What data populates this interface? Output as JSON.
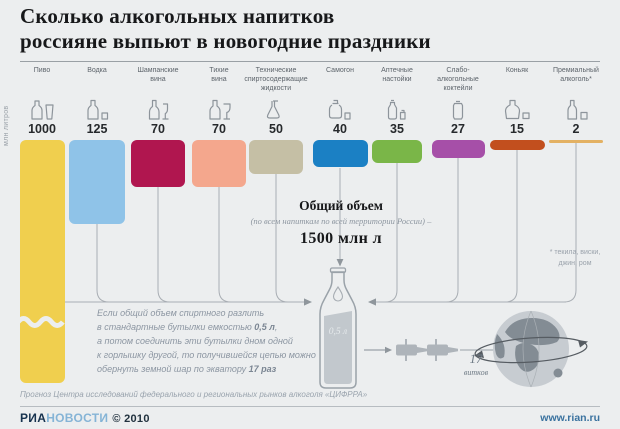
{
  "title": {
    "line1": "Сколько алкогольных напитков",
    "line2": "россияне выпьют в новогодние праздники"
  },
  "unit_label": "млн литров",
  "chart_data": {
    "type": "bar",
    "title": "Сколько алкогольных напитков россияне выпьют в новогодние праздники",
    "unit": "млн литров",
    "categories": [
      "Пиво",
      "Водка",
      "Шампанские вина",
      "Тихие вина",
      "Технические спиртосодержащие жидкости",
      "Самогон",
      "Аптечные настойки",
      "Слабо-алкогольные коктейли",
      "Коньяк",
      "Премиальный алкоголь*"
    ],
    "values": [
      1000,
      125,
      70,
      70,
      50,
      40,
      35,
      27,
      15,
      2
    ],
    "colors": [
      "#f0cf4e",
      "#8fc3e8",
      "#b0164f",
      "#f4a78d",
      "#c5bfa5",
      "#1b80c4",
      "#7ab648",
      "#a64fa8",
      "#c24f1e",
      "#e3b163"
    ],
    "orientation": "columns-down",
    "beer_bar_truncated": true,
    "total_label": "Общий объем",
    "total_note": "(по всем напиткам по всей территории России) –",
    "total_value": "1500 млн л",
    "footnote": "* текила, виски, джин, ром"
  },
  "columns": [
    {
      "label_lines": [
        "Пиво"
      ],
      "value": "1000",
      "color": "#f0cf4e",
      "icon": "beer-bottle-glass-icon"
    },
    {
      "label_lines": [
        "Водка"
      ],
      "value": "125",
      "color": "#8fc3e8",
      "icon": "vodka-bottle-shot-icon"
    },
    {
      "label_lines": [
        "Шампанские",
        "вина"
      ],
      "value": "70",
      "color": "#b0164f",
      "icon": "champagne-bottle-flute-icon"
    },
    {
      "label_lines": [
        "Тихие",
        "вина"
      ],
      "value": "70",
      "color": "#f4a78d",
      "icon": "wine-bottle-glass-icon"
    },
    {
      "label_lines": [
        "Технические",
        "спиртосодержащие",
        "жидкости"
      ],
      "value": "50",
      "color": "#c5bfa5",
      "icon": "flask-icon"
    },
    {
      "label_lines": [
        "Самогон"
      ],
      "value": "40",
      "color": "#1b80c4",
      "icon": "jug-shot-icon"
    },
    {
      "label_lines": [
        "Аптечные",
        "настойки"
      ],
      "value": "35",
      "color": "#7ab648",
      "icon": "tincture-vial-icon"
    },
    {
      "label_lines": [
        "Слабо-",
        "алкогольные",
        "коктейли"
      ],
      "value": "27",
      "color": "#a64fa8",
      "icon": "cocktail-can-icon"
    },
    {
      "label_lines": [
        "Коньяк"
      ],
      "value": "15",
      "color": "#c24f1e",
      "icon": "cognac-decanter-glass-icon"
    },
    {
      "label_lines": [
        "Премиальный",
        "алкоголь*"
      ],
      "value": "2",
      "color": "#e3b163",
      "icon": "premium-bottle-glass-icon"
    }
  ],
  "center": {
    "title": "Общий объем",
    "note": "(по всем напиткам по всей территории России) –",
    "total": "1500 млн л"
  },
  "bottle_label": "0,5 л",
  "annotation": {
    "lines": [
      "Если общий объем спиртного разлить",
      "в стандартные бутылки емкостью 0,5 л,",
      "а потом соединить эти бутылки дном одной",
      "к горлышку другой, то получившейся цепью можно",
      "обернуть земной шар по экватору 17 раз"
    ],
    "bold_terms": [
      "0,5 л",
      "17 раз"
    ]
  },
  "footnote_lines": [
    "* текила, виски,",
    "джин, ром"
  ],
  "loops": {
    "number": "17",
    "word": "витков"
  },
  "source": "Прогноз Центра исследований федерального и региональных рынков алкоголя «ЦИФРРА»",
  "footer": {
    "brand_bold": "РИА",
    "brand_light": "НОВОСТИ",
    "copyright": "© 2010",
    "site": "www.rian.ru"
  }
}
